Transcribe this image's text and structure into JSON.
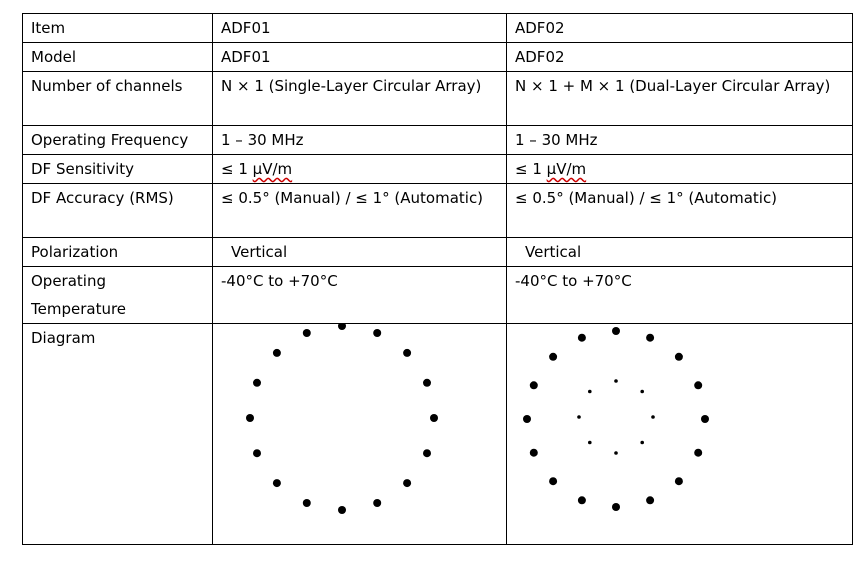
{
  "rows": {
    "item": {
      "label": "Item",
      "a": "ADF01",
      "b": "ADF02"
    },
    "model": {
      "label": "Model",
      "a": "ADF01",
      "b": "ADF02"
    },
    "channels": {
      "label": "Number of channels",
      "a": "N  ×  1 (Single-Layer Circular Array)",
      "b": "N  ×  1 + M  ×  1 (Dual-Layer Circular Array)"
    },
    "frequency": {
      "label": "Operating Frequency",
      "a": "1 – 30 MHz",
      "b": "1 – 30 MHz"
    },
    "sensitivity": {
      "label": "DF Sensitivity",
      "a_pre": "≤ 1 ",
      "a_unit": "µV/m",
      "b_pre": "≤ 1 ",
      "b_unit": "µV/m"
    },
    "accuracy": {
      "label": "DF Accuracy (RMS)",
      "a": "≤ 0.5°  (Manual) / ≤ 1° (Automatic)",
      "b": "≤ 0.5°  (Manual) / ≤ 1° (Automatic)"
    },
    "polarization": {
      "label": "Polarization",
      "a": "Vertical",
      "b": "Vertical"
    },
    "temperature": {
      "label": "Operating Temperature",
      "a": "-40°C to +70°C",
      "b": "-40°C to +70°C"
    },
    "diagram": {
      "label": "Diagram"
    }
  },
  "diagrams": {
    "adf01": {
      "outer_count": 16
    },
    "adf02": {
      "outer_count": 16,
      "inner_count": 8
    }
  }
}
